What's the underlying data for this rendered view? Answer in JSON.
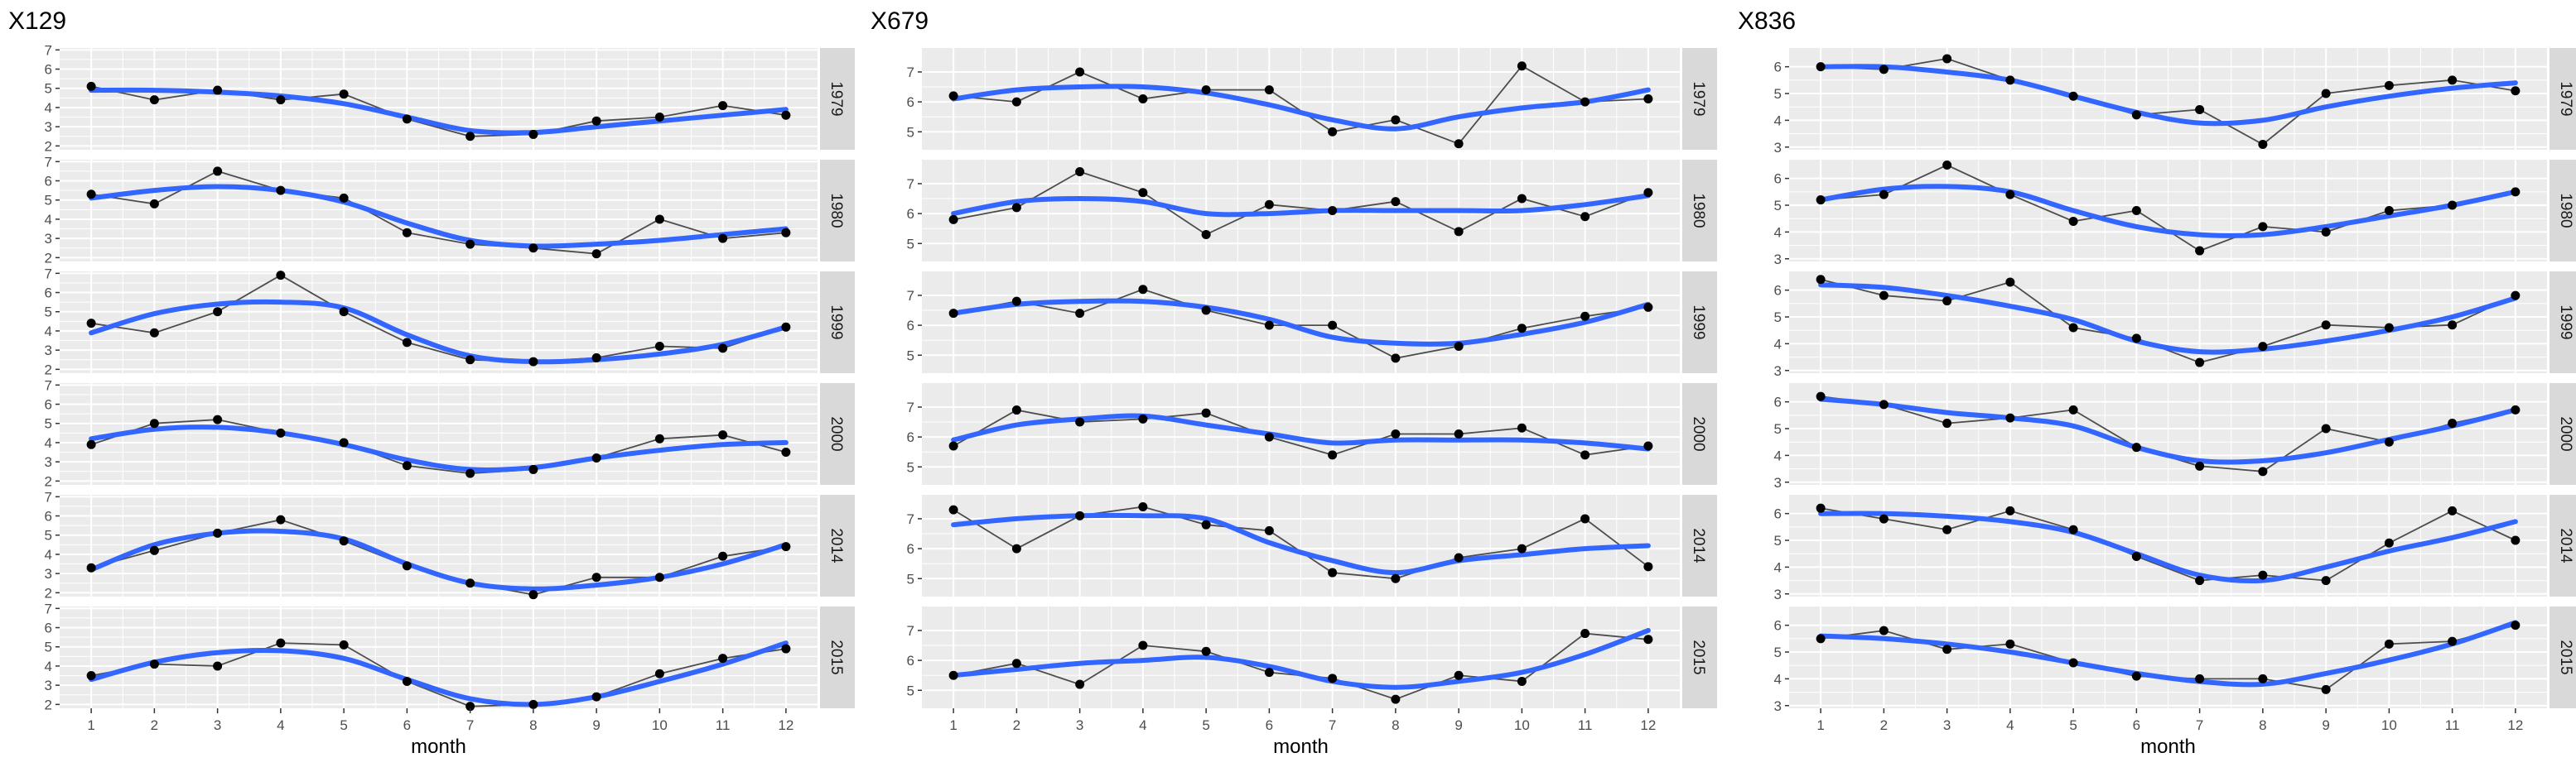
{
  "chart_data": [
    {
      "type": "line",
      "title": "X129",
      "xlabel": "month",
      "x": [
        1,
        2,
        3,
        4,
        5,
        6,
        7,
        8,
        9,
        10,
        11,
        12
      ],
      "xlim": [
        0.5,
        12.5
      ],
      "ylim": [
        1.8,
        7.1
      ],
      "yticks": [
        2,
        3,
        4,
        5,
        6,
        7
      ],
      "facets": [
        {
          "label": "1979",
          "observed": [
            5.1,
            4.4,
            4.9,
            4.4,
            4.7,
            3.4,
            2.5,
            2.6,
            3.3,
            3.5,
            4.1,
            3.6
          ],
          "smooth": [
            4.9,
            4.9,
            4.8,
            4.6,
            4.2,
            3.5,
            2.8,
            2.7,
            3.0,
            3.3,
            3.6,
            3.9
          ]
        },
        {
          "label": "1980",
          "observed": [
            5.3,
            4.8,
            6.5,
            5.5,
            5.1,
            3.3,
            2.7,
            2.5,
            2.2,
            4.0,
            3.0,
            3.3
          ],
          "smooth": [
            5.1,
            5.5,
            5.7,
            5.5,
            4.9,
            3.8,
            2.9,
            2.6,
            2.7,
            2.9,
            3.2,
            3.5
          ]
        },
        {
          "label": "1999",
          "observed": [
            4.4,
            3.9,
            5.0,
            6.9,
            5.0,
            3.4,
            2.5,
            2.4,
            2.6,
            3.2,
            3.1,
            4.2
          ],
          "smooth": [
            3.9,
            4.9,
            5.4,
            5.5,
            5.2,
            3.8,
            2.7,
            2.4,
            2.5,
            2.8,
            3.3,
            4.2
          ]
        },
        {
          "label": "2000",
          "observed": [
            3.9,
            5.0,
            5.2,
            4.5,
            4.0,
            2.8,
            2.4,
            2.6,
            3.2,
            4.2,
            4.4,
            3.5
          ],
          "smooth": [
            4.2,
            4.7,
            4.8,
            4.5,
            3.9,
            3.1,
            2.6,
            2.7,
            3.2,
            3.6,
            3.9,
            4.0
          ]
        },
        {
          "label": "2014",
          "observed": [
            3.3,
            4.2,
            5.1,
            5.8,
            4.7,
            3.4,
            2.5,
            1.9,
            2.8,
            2.8,
            3.9,
            4.4
          ],
          "smooth": [
            3.2,
            4.5,
            5.1,
            5.2,
            4.8,
            3.5,
            2.5,
            2.2,
            2.4,
            2.8,
            3.5,
            4.5
          ]
        },
        {
          "label": "2015",
          "observed": [
            3.5,
            4.1,
            4.0,
            5.2,
            5.1,
            3.2,
            1.9,
            2.0,
            2.4,
            3.6,
            4.4,
            4.9
          ],
          "smooth": [
            3.3,
            4.2,
            4.7,
            4.8,
            4.4,
            3.3,
            2.3,
            2.0,
            2.4,
            3.2,
            4.1,
            5.2
          ]
        }
      ]
    },
    {
      "type": "line",
      "title": "X679",
      "xlabel": "month",
      "x": [
        1,
        2,
        3,
        4,
        5,
        6,
        7,
        8,
        9,
        10,
        11,
        12
      ],
      "xlim": [
        0.5,
        12.5
      ],
      "ylim": [
        4.4,
        7.8
      ],
      "yticks": [
        5,
        6,
        7
      ],
      "facets": [
        {
          "label": "1979",
          "observed": [
            6.2,
            6.0,
            7.0,
            6.1,
            6.4,
            6.4,
            5.0,
            5.4,
            4.6,
            7.2,
            6.0,
            6.1
          ],
          "smooth": [
            6.1,
            6.4,
            6.5,
            6.5,
            6.3,
            5.9,
            5.4,
            5.1,
            5.5,
            5.8,
            6.0,
            6.4
          ]
        },
        {
          "label": "1980",
          "observed": [
            5.8,
            6.2,
            7.4,
            6.7,
            5.3,
            6.3,
            6.1,
            6.4,
            5.4,
            6.5,
            5.9,
            6.7
          ],
          "smooth": [
            6.0,
            6.4,
            6.5,
            6.4,
            6.0,
            6.0,
            6.1,
            6.1,
            6.1,
            6.1,
            6.3,
            6.6
          ]
        },
        {
          "label": "1999",
          "observed": [
            6.4,
            6.8,
            6.4,
            7.2,
            6.5,
            6.0,
            6.0,
            4.9,
            5.3,
            5.9,
            6.3,
            6.6
          ],
          "smooth": [
            6.4,
            6.7,
            6.8,
            6.8,
            6.6,
            6.2,
            5.6,
            5.4,
            5.4,
            5.7,
            6.1,
            6.7
          ]
        },
        {
          "label": "2000",
          "observed": [
            5.7,
            6.9,
            6.5,
            6.6,
            6.8,
            6.0,
            5.4,
            6.1,
            6.1,
            6.3,
            5.4,
            5.7
          ],
          "smooth": [
            5.9,
            6.4,
            6.6,
            6.7,
            6.4,
            6.1,
            5.8,
            5.9,
            5.9,
            5.9,
            5.8,
            5.6
          ]
        },
        {
          "label": "2014",
          "observed": [
            7.3,
            6.0,
            7.1,
            7.4,
            6.8,
            6.6,
            5.2,
            5.0,
            5.7,
            6.0,
            7.0,
            5.4
          ],
          "smooth": [
            6.8,
            7.0,
            7.1,
            7.1,
            7.0,
            6.2,
            5.6,
            5.2,
            5.6,
            5.8,
            6.0,
            6.1
          ]
        },
        {
          "label": "2015",
          "observed": [
            5.5,
            5.9,
            5.2,
            6.5,
            6.3,
            5.6,
            5.4,
            4.7,
            5.5,
            5.3,
            6.9,
            6.7
          ],
          "smooth": [
            5.5,
            5.7,
            5.9,
            6.0,
            6.1,
            5.8,
            5.3,
            5.1,
            5.3,
            5.6,
            6.2,
            7.0
          ]
        }
      ]
    },
    {
      "type": "line",
      "title": "X836",
      "xlabel": "month",
      "x": [
        1,
        2,
        3,
        4,
        5,
        6,
        7,
        8,
        9,
        10,
        11,
        12
      ],
      "xlim": [
        0.5,
        12.5
      ],
      "ylim": [
        2.9,
        6.7
      ],
      "yticks": [
        3,
        4,
        5,
        6
      ],
      "facets": [
        {
          "label": "1979",
          "observed": [
            6.0,
            5.9,
            6.3,
            5.5,
            4.9,
            4.2,
            4.4,
            3.1,
            5.0,
            5.3,
            5.5,
            5.1
          ],
          "smooth": [
            6.0,
            6.0,
            5.8,
            5.5,
            4.9,
            4.3,
            3.9,
            4.0,
            4.5,
            4.9,
            5.2,
            5.4
          ]
        },
        {
          "label": "1980",
          "observed": [
            5.2,
            5.4,
            6.5,
            5.4,
            4.4,
            4.8,
            3.3,
            4.2,
            4.0,
            4.8,
            5.0,
            5.5
          ],
          "smooth": [
            5.2,
            5.6,
            5.7,
            5.5,
            4.8,
            4.2,
            3.9,
            3.9,
            4.2,
            4.6,
            5.0,
            5.5
          ]
        },
        {
          "label": "1999",
          "observed": [
            6.4,
            5.8,
            5.6,
            6.3,
            4.6,
            4.2,
            3.3,
            3.9,
            4.7,
            4.6,
            4.7,
            5.8
          ],
          "smooth": [
            6.2,
            6.1,
            5.8,
            5.4,
            4.9,
            4.1,
            3.7,
            3.8,
            4.1,
            4.5,
            5.0,
            5.7
          ]
        },
        {
          "label": "2000",
          "observed": [
            6.2,
            5.9,
            5.2,
            5.4,
            5.7,
            4.3,
            3.6,
            3.4,
            5.0,
            4.5,
            5.2,
            5.7
          ],
          "smooth": [
            6.1,
            5.9,
            5.6,
            5.4,
            5.1,
            4.3,
            3.8,
            3.8,
            4.1,
            4.6,
            5.1,
            5.7
          ]
        },
        {
          "label": "2014",
          "observed": [
            6.2,
            5.8,
            5.4,
            6.1,
            5.4,
            4.4,
            3.5,
            3.7,
            3.5,
            4.9,
            6.1,
            5.0
          ],
          "smooth": [
            6.0,
            6.0,
            5.9,
            5.7,
            5.3,
            4.5,
            3.7,
            3.5,
            4.0,
            4.6,
            5.1,
            5.7
          ]
        },
        {
          "label": "2015",
          "observed": [
            5.5,
            5.8,
            5.1,
            5.3,
            4.6,
            4.1,
            4.0,
            4.0,
            3.6,
            5.3,
            5.4,
            6.0
          ],
          "smooth": [
            5.6,
            5.5,
            5.3,
            5.0,
            4.6,
            4.2,
            3.9,
            3.8,
            4.2,
            4.7,
            5.3,
            6.1
          ]
        }
      ]
    }
  ],
  "colors": {
    "panel_background": "#ebebeb",
    "gridline": "#ffffff",
    "strip_background": "#d9d9d9",
    "observed_line": "#4d4d4d",
    "observed_point": "#000000",
    "smooth_line": "#3366ff",
    "axis_text": "#4d4d4d"
  }
}
